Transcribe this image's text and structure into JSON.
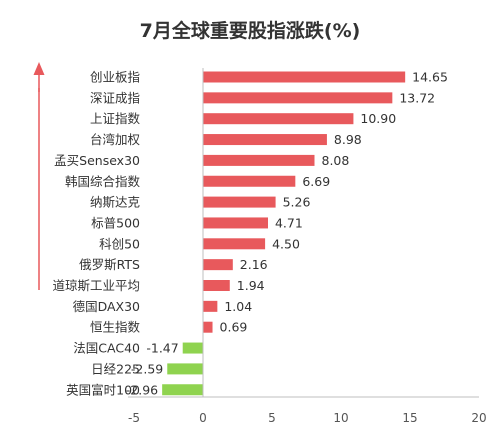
{
  "chart_data": {
    "type": "bar",
    "orientation": "horizontal",
    "title": "7月全球重要股指涨跌(%)",
    "categories": [
      "创业板指",
      "深证成指",
      "上证指数",
      "台湾加权",
      "孟买Sensex30",
      "韩国综合指数",
      "纳斯达克",
      "标普500",
      "科创50",
      "俄罗斯RTS",
      "道琼斯工业平均",
      "德国DAX30",
      "恒生指数",
      "法国CAC40",
      "日经225",
      "英国富时100"
    ],
    "values": [
      14.65,
      13.72,
      10.9,
      8.98,
      8.08,
      6.69,
      5.26,
      4.71,
      4.5,
      2.16,
      1.94,
      1.04,
      0.69,
      -1.47,
      -2.59,
      -2.96
    ],
    "value_labels": [
      "14.65",
      "13.72",
      "10.90",
      "8.98",
      "8.08",
      "6.69",
      "5.26",
      "4.71",
      "4.50",
      "2.16",
      "1.94",
      "1.04",
      "0.69",
      "-1.47",
      "-2.59",
      "-2.96"
    ],
    "xlim": [
      -5,
      20
    ],
    "xticks": [
      "-5",
      "0",
      "5",
      "10",
      "15",
      "20"
    ],
    "xtick_values": [
      -5,
      0,
      5,
      10,
      15,
      20
    ],
    "grid": false,
    "colors": {
      "positive": "#e8595c",
      "negative": "#8fd34f",
      "axis": "#bfbfbf",
      "arrow": "#e8595c"
    }
  }
}
